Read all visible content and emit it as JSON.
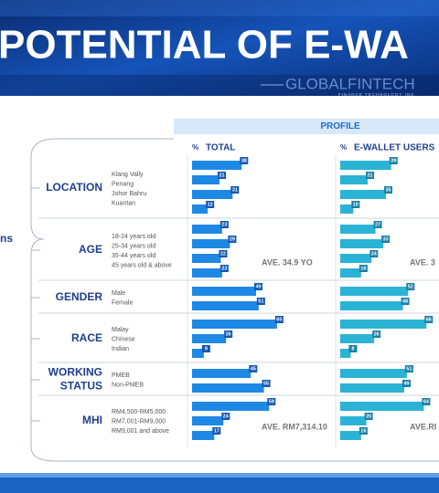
{
  "header": {
    "title": "POTENTIAL OF E-WA",
    "brand": "GLOBALFINTECH",
    "tagline": "FINANCE TECHNOLOGY INS"
  },
  "side_label": "ns",
  "profile": {
    "title": "PROFILE",
    "unit": "%",
    "columns": [
      "TOTAL",
      "E-WALLET USERS"
    ],
    "xlim": [
      0,
      70
    ],
    "colors": [
      "#1e88e5",
      "#2bb3d6"
    ],
    "sections": [
      {
        "name": [
          "LOCATION"
        ],
        "items": [
          "Klang Vally",
          "Penang",
          "Johor Bahru",
          "Kuantan"
        ],
        "total": [
          38,
          21,
          31,
          12
        ],
        "ewallet": [
          39,
          21,
          35,
          10
        ]
      },
      {
        "name": [
          "AGE"
        ],
        "items": [
          "18-24 years old",
          "25-34 years old",
          "35-44 years old",
          "45 years old & above"
        ],
        "total": [
          23,
          29,
          22,
          23
        ],
        "ewallet": [
          27,
          33,
          24,
          16
        ],
        "averages": [
          "AVE. 34.9 YO",
          "AVE. 3"
        ]
      },
      {
        "name": [
          "GENDER"
        ],
        "items": [
          "Male",
          "Female"
        ],
        "total": [
          49,
          51
        ],
        "ewallet": [
          52,
          48
        ]
      },
      {
        "name": [
          "RACE"
        ],
        "items": [
          "Malay",
          "Chinese",
          "Indian"
        ],
        "total": [
          65,
          26,
          9
        ],
        "ewallet": [
          66,
          26,
          8
        ]
      },
      {
        "name": [
          "WORKING",
          "STATUS"
        ],
        "items": [
          "PMEB",
          "Non-PMEB"
        ],
        "total": [
          45,
          55
        ],
        "ewallet": [
          51,
          49
        ]
      },
      {
        "name": [
          "MHI"
        ],
        "items": [
          "RM4,500-RM5,000",
          "RM7,001-RM9,000",
          "RM9,001 and above"
        ],
        "total": [
          59,
          24,
          17
        ],
        "ewallet": [
          64,
          20,
          16
        ],
        "averages": [
          "AVE. RM7,314.10",
          "AVE.RI"
        ]
      }
    ]
  }
}
